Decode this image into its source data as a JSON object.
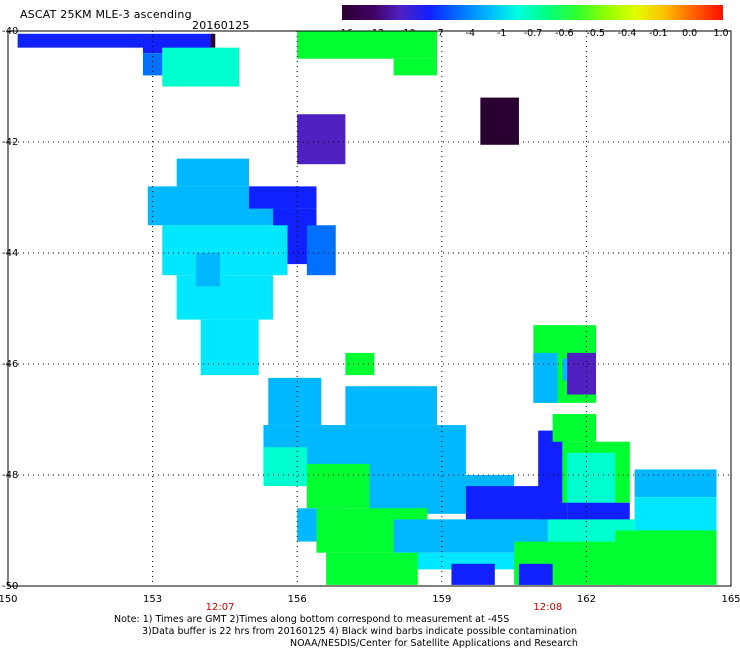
{
  "header": {
    "title": "ASCAT 25KM MLE-3 ascending",
    "date": "20160125"
  },
  "colorbar": {
    "labels": [
      "-16",
      "-13",
      "-10",
      "-7",
      "-4",
      "-1",
      "-0.7",
      "-0.6",
      "-0.5",
      "-0.4",
      "-0.1",
      "0.0",
      "1.0"
    ],
    "stops": [
      "#2a0030",
      "#400060",
      "#5020c0",
      "#1020ff",
      "#0070ff",
      "#00b8ff",
      "#00ffe0",
      "#00ff80",
      "#30ff30",
      "#90ff00",
      "#e0ff00",
      "#ffc000",
      "#ff6000",
      "#ff1000"
    ]
  },
  "axes": {
    "lon_labels": [
      "150",
      "153",
      "156",
      "159",
      "162",
      "165"
    ],
    "lat_labels": [
      "-40",
      "-42",
      "-44",
      "-46",
      "-48",
      "-50"
    ],
    "lon_range": [
      150,
      165
    ],
    "lat_range": [
      -40,
      -50
    ]
  },
  "pass_times": [
    {
      "label": "12:07",
      "lon": 154.4
    },
    {
      "label": "12:08",
      "lon": 161.2
    }
  ],
  "colors": {
    "dark_purple": "#2a0030",
    "purple": "#5020c0",
    "blue": "#1020ff",
    "mid_blue": "#0070ff",
    "light_blue": "#00b8ff",
    "cyan": "#00e8ff",
    "aqua": "#00ffd0",
    "green": "#00ff30",
    "bright_green": "#40ff20"
  },
  "data_blocks": [
    {
      "lon": [
        150.2,
        152.8
      ],
      "lat": [
        -40.05,
        -40.3
      ],
      "color": "blue"
    },
    {
      "lon": [
        152.8,
        154.2
      ],
      "lat": [
        -40.05,
        -40.4
      ],
      "color": "blue"
    },
    {
      "lon": [
        154.2,
        154.3
      ],
      "lat": [
        -40.05,
        -40.3
      ],
      "color": "dark_purple"
    },
    {
      "lon": [
        152.8,
        154.0
      ],
      "lat": [
        -40.4,
        -40.8
      ],
      "color": "mid_blue"
    },
    {
      "lon": [
        153.2,
        154.8
      ],
      "lat": [
        -40.3,
        -41.0
      ],
      "color": "aqua"
    },
    {
      "lon": [
        156.0,
        158.9
      ],
      "lat": [
        -40.0,
        -40.5
      ],
      "color": "green"
    },
    {
      "lon": [
        158.0,
        158.9
      ],
      "lat": [
        -40.5,
        -40.8
      ],
      "color": "green"
    },
    {
      "lon": [
        159.8,
        160.6
      ],
      "lat": [
        -41.2,
        -42.05
      ],
      "color": "dark_purple"
    },
    {
      "lon": [
        156.0,
        157.0
      ],
      "lat": [
        -41.5,
        -42.4
      ],
      "color": "purple"
    },
    {
      "lon": [
        153.5,
        155.0
      ],
      "lat": [
        -42.3,
        -42.8
      ],
      "color": "light_blue"
    },
    {
      "lon": [
        152.9,
        156.0
      ],
      "lat": [
        -42.8,
        -43.5
      ],
      "color": "light_blue"
    },
    {
      "lon": [
        155.0,
        156.4
      ],
      "lat": [
        -42.8,
        -43.2
      ],
      "color": "blue"
    },
    {
      "lon": [
        155.5,
        156.4
      ],
      "lat": [
        -43.2,
        -44.2
      ],
      "color": "blue"
    },
    {
      "lon": [
        156.2,
        156.8
      ],
      "lat": [
        -43.5,
        -44.4
      ],
      "color": "mid_blue"
    },
    {
      "lon": [
        153.2,
        155.8
      ],
      "lat": [
        -43.5,
        -44.4
      ],
      "color": "cyan"
    },
    {
      "lon": [
        153.5,
        155.5
      ],
      "lat": [
        -44.4,
        -45.2
      ],
      "color": "cyan"
    },
    {
      "lon": [
        154.0,
        155.2
      ],
      "lat": [
        -45.2,
        -46.2
      ],
      "color": "cyan"
    },
    {
      "lon": [
        153.9,
        154.4
      ],
      "lat": [
        -44.0,
        -44.6
      ],
      "color": "light_blue"
    },
    {
      "lon": [
        157.0,
        157.6
      ],
      "lat": [
        -45.8,
        -46.2
      ],
      "color": "green"
    },
    {
      "lon": [
        160.9,
        162.2
      ],
      "lat": [
        -45.3,
        -46.7
      ],
      "color": "green"
    },
    {
      "lon": [
        160.9,
        161.4
      ],
      "lat": [
        -45.8,
        -46.7
      ],
      "color": "light_blue"
    },
    {
      "lon": [
        161.6,
        162.2
      ],
      "lat": [
        -45.8,
        -46.55
      ],
      "color": "purple"
    },
    {
      "lon": [
        161.5,
        161.6
      ],
      "lat": [
        -45.9,
        -46.3
      ],
      "color": "light_blue"
    },
    {
      "lon": [
        155.4,
        156.5
      ],
      "lat": [
        -46.25,
        -47.1
      ],
      "color": "light_blue"
    },
    {
      "lon": [
        157.0,
        158.9
      ],
      "lat": [
        -46.4,
        -47.1
      ],
      "color": "light_blue"
    },
    {
      "lon": [
        155.3,
        159.5
      ],
      "lat": [
        -47.1,
        -48.0
      ],
      "color": "light_blue"
    },
    {
      "lon": [
        155.3,
        156.2
      ],
      "lat": [
        -47.5,
        -48.2
      ],
      "color": "aqua"
    },
    {
      "lon": [
        156.2,
        157.5
      ],
      "lat": [
        -47.8,
        -48.6
      ],
      "color": "green"
    },
    {
      "lon": [
        157.5,
        160.5
      ],
      "lat": [
        -48.0,
        -48.7
      ],
      "color": "light_blue"
    },
    {
      "lon": [
        159.5,
        161.6
      ],
      "lat": [
        -48.2,
        -48.8
      ],
      "color": "blue"
    },
    {
      "lon": [
        161.0,
        161.6
      ],
      "lat": [
        -47.2,
        -48.9
      ],
      "color": "blue"
    },
    {
      "lon": [
        161.3,
        162.2
      ],
      "lat": [
        -46.9,
        -47.4
      ],
      "color": "green"
    },
    {
      "lon": [
        161.5,
        162.9
      ],
      "lat": [
        -47.4,
        -48.5
      ],
      "color": "green"
    },
    {
      "lon": [
        161.6,
        162.6
      ],
      "lat": [
        -47.6,
        -48.8
      ],
      "color": "aqua"
    },
    {
      "lon": [
        161.6,
        162.9
      ],
      "lat": [
        -48.5,
        -49.0
      ],
      "color": "blue"
    },
    {
      "lon": [
        163.0,
        164.7
      ],
      "lat": [
        -47.9,
        -48.4
      ],
      "color": "light_blue"
    },
    {
      "lon": [
        163.0,
        164.7
      ],
      "lat": [
        -48.4,
        -49.0
      ],
      "color": "cyan"
    },
    {
      "lon": [
        156.0,
        157.0
      ],
      "lat": [
        -48.6,
        -49.2
      ],
      "color": "light_blue"
    },
    {
      "lon": [
        156.4,
        158.7
      ],
      "lat": [
        -48.6,
        -49.4
      ],
      "color": "green"
    },
    {
      "lon": [
        158.0,
        161.5
      ],
      "lat": [
        -48.8,
        -49.4
      ],
      "color": "light_blue"
    },
    {
      "lon": [
        158.4,
        160.8
      ],
      "lat": [
        -49.4,
        -49.7
      ],
      "color": "cyan"
    },
    {
      "lon": [
        161.2,
        163.0
      ],
      "lat": [
        -48.8,
        -49.2
      ],
      "color": "aqua"
    },
    {
      "lon": [
        156.6,
        158.5
      ],
      "lat": [
        -49.4,
        -49.98
      ],
      "color": "green"
    },
    {
      "lon": [
        160.5,
        162.9
      ],
      "lat": [
        -49.2,
        -49.98
      ],
      "color": "green"
    },
    {
      "lon": [
        162.6,
        164.7
      ],
      "lat": [
        -49.0,
        -49.98
      ],
      "color": "green"
    },
    {
      "lon": [
        159.2,
        160.1
      ],
      "lat": [
        -49.6,
        -49.98
      ],
      "color": "blue"
    },
    {
      "lon": [
        160.6,
        161.3
      ],
      "lat": [
        -49.6,
        -49.98
      ],
      "color": "blue"
    }
  ],
  "notes": {
    "line1": "Note: 1) Times are GMT 2)Times along bottom correspond to measurement at -45S",
    "line2": "3)Data buffer is 22 hrs from 20160125 4) Black wind barbs indicate possible contamination",
    "line3": "NOAA/NESDIS/Center for Satellite Applications and Research"
  }
}
